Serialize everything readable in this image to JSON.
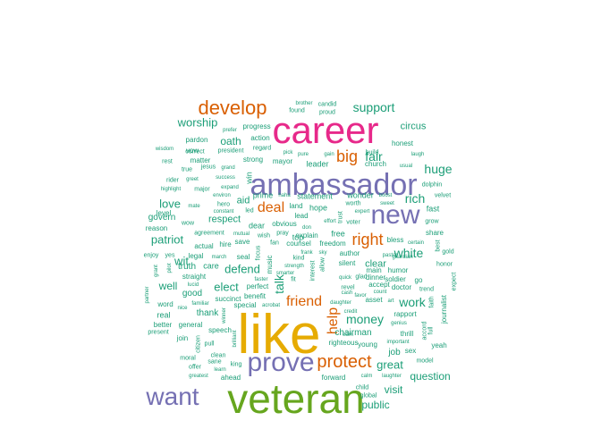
{
  "palette": {
    "teal": "#1b9e77",
    "orange": "#d95f02",
    "purple": "#7570b3",
    "pink": "#e7298a",
    "green": "#66a61e",
    "gold": "#e6ab02"
  },
  "cloud": {
    "words": [
      {
        "text": "like",
        "color": "gold",
        "size": 62
      },
      {
        "text": "veteran",
        "color": "green",
        "size": 46
      },
      {
        "text": "career",
        "color": "pink",
        "size": 42
      },
      {
        "text": "ambassador",
        "color": "purple",
        "size": 34
      },
      {
        "text": "new",
        "color": "purple",
        "size": 30
      },
      {
        "text": "prove",
        "color": "purple",
        "size": 30
      },
      {
        "text": "want",
        "color": "purple",
        "size": 28
      },
      {
        "text": "develop",
        "color": "orange",
        "size": 22
      },
      {
        "text": "protect",
        "color": "orange",
        "size": 20
      },
      {
        "text": "big",
        "color": "orange",
        "size": 18
      },
      {
        "text": "right",
        "color": "orange",
        "size": 18
      },
      {
        "text": "deal",
        "color": "orange",
        "size": 16
      },
      {
        "text": "friend",
        "color": "orange",
        "size": 16
      },
      {
        "text": "help",
        "color": "orange",
        "size": 16
      },
      {
        "text": "support",
        "color": "teal",
        "size": 14
      },
      {
        "text": "fair",
        "color": "teal",
        "size": 14
      },
      {
        "text": "huge",
        "color": "teal",
        "size": 14
      },
      {
        "text": "rich",
        "color": "teal",
        "size": 14
      },
      {
        "text": "white",
        "color": "teal",
        "size": 14
      },
      {
        "text": "work",
        "color": "teal",
        "size": 14
      },
      {
        "text": "money",
        "color": "teal",
        "size": 14
      },
      {
        "text": "great",
        "color": "teal",
        "size": 13
      },
      {
        "text": "patriot",
        "color": "teal",
        "size": 13
      },
      {
        "text": "love",
        "color": "teal",
        "size": 13
      },
      {
        "text": "elect",
        "color": "teal",
        "size": 13
      },
      {
        "text": "defend",
        "color": "teal",
        "size": 13
      },
      {
        "text": "wit",
        "color": "teal",
        "size": 13
      },
      {
        "text": "well",
        "color": "teal",
        "size": 12
      },
      {
        "text": "talk",
        "color": "teal",
        "size": 14
      },
      {
        "text": "worship",
        "color": "teal",
        "size": 13
      },
      {
        "text": "oath",
        "color": "teal",
        "size": 12
      },
      {
        "text": "question",
        "color": "teal",
        "size": 12
      },
      {
        "text": "visit",
        "color": "teal",
        "size": 12
      },
      {
        "text": "public",
        "color": "teal",
        "size": 12
      },
      {
        "text": "circus",
        "color": "teal",
        "size": 11
      },
      {
        "text": "respect",
        "color": "teal",
        "size": 11
      },
      {
        "text": "aid",
        "color": "teal",
        "size": 11
      },
      {
        "text": "clear",
        "color": "teal",
        "size": 11
      },
      {
        "text": "chairman",
        "color": "teal",
        "size": 10
      },
      {
        "text": "job",
        "color": "teal",
        "size": 10
      },
      {
        "text": "good",
        "color": "teal",
        "size": 10
      },
      {
        "text": "truth",
        "color": "teal",
        "size": 10
      },
      {
        "text": "govern",
        "color": "teal",
        "size": 10
      },
      {
        "text": "thank",
        "color": "teal",
        "size": 10
      },
      {
        "text": "real",
        "color": "teal",
        "size": 9
      },
      {
        "text": "care",
        "color": "teal",
        "size": 9
      },
      {
        "text": "leader",
        "color": "teal",
        "size": 9
      },
      {
        "text": "free",
        "color": "teal",
        "size": 9
      },
      {
        "text": "dear",
        "color": "teal",
        "size": 9
      },
      {
        "text": "prime",
        "color": "teal",
        "size": 9
      },
      {
        "text": "statement",
        "color": "teal",
        "size": 9
      },
      {
        "text": "wonder",
        "color": "teal",
        "size": 9
      },
      {
        "text": "top",
        "color": "teal",
        "size": 9
      },
      {
        "text": "hope",
        "color": "teal",
        "size": 9
      },
      {
        "text": "level",
        "color": "teal",
        "size": 8
      },
      {
        "text": "pardon",
        "color": "teal",
        "size": 8
      },
      {
        "text": "action",
        "color": "teal",
        "size": 8
      },
      {
        "text": "progress",
        "color": "teal",
        "size": 8
      },
      {
        "text": "strong",
        "color": "teal",
        "size": 8
      },
      {
        "text": "mayor",
        "color": "teal",
        "size": 8
      },
      {
        "text": "vow",
        "color": "teal",
        "size": 8
      },
      {
        "text": "matter",
        "color": "teal",
        "size": 8
      },
      {
        "text": "jesus",
        "color": "teal",
        "size": 7
      },
      {
        "text": "true",
        "color": "teal",
        "size": 7
      },
      {
        "text": "rest",
        "color": "teal",
        "size": 7
      },
      {
        "text": "major",
        "color": "teal",
        "size": 7
      },
      {
        "text": "rider",
        "color": "teal",
        "size": 7
      },
      {
        "text": "win",
        "color": "teal",
        "size": 9
      },
      {
        "text": "honest",
        "color": "teal",
        "size": 8
      },
      {
        "text": "church",
        "color": "teal",
        "size": 8
      },
      {
        "text": "build",
        "color": "teal",
        "size": 7
      },
      {
        "text": "fast",
        "color": "teal",
        "size": 9
      },
      {
        "text": "velvet",
        "color": "teal",
        "size": 7
      },
      {
        "text": "dolphin",
        "color": "teal",
        "size": 7
      },
      {
        "text": "bless",
        "color": "teal",
        "size": 8
      },
      {
        "text": "share",
        "color": "teal",
        "size": 8
      },
      {
        "text": "author",
        "color": "teal",
        "size": 8
      },
      {
        "text": "silent",
        "color": "teal",
        "size": 8
      },
      {
        "text": "freedom",
        "color": "teal",
        "size": 8
      },
      {
        "text": "counsel",
        "color": "teal",
        "size": 8
      },
      {
        "text": "explain",
        "color": "teal",
        "size": 8
      },
      {
        "text": "lead",
        "color": "teal",
        "size": 8
      },
      {
        "text": "land",
        "color": "teal",
        "size": 8
      },
      {
        "text": "obvious",
        "color": "teal",
        "size": 8
      },
      {
        "text": "seal",
        "color": "teal",
        "size": 8
      },
      {
        "text": "save",
        "color": "teal",
        "size": 8
      },
      {
        "text": "wish",
        "color": "teal",
        "size": 7
      },
      {
        "text": "pray",
        "color": "teal",
        "size": 7
      },
      {
        "text": "fan",
        "color": "teal",
        "size": 7
      },
      {
        "text": "hire",
        "color": "teal",
        "size": 8
      },
      {
        "text": "actual",
        "color": "teal",
        "size": 8
      },
      {
        "text": "agreement",
        "color": "teal",
        "size": 7
      },
      {
        "text": "reason",
        "color": "teal",
        "size": 8
      },
      {
        "text": "wow",
        "color": "teal",
        "size": 7
      },
      {
        "text": "legal",
        "color": "teal",
        "size": 8
      },
      {
        "text": "straight",
        "color": "teal",
        "size": 8
      },
      {
        "text": "succinct",
        "color": "teal",
        "size": 8
      },
      {
        "text": "perfect",
        "color": "teal",
        "size": 8
      },
      {
        "text": "benefit",
        "color": "teal",
        "size": 8
      },
      {
        "text": "special",
        "color": "teal",
        "size": 8
      },
      {
        "text": "speech",
        "color": "teal",
        "size": 8
      },
      {
        "text": "general",
        "color": "teal",
        "size": 8
      },
      {
        "text": "join",
        "color": "teal",
        "size": 8
      },
      {
        "text": "present",
        "color": "teal",
        "size": 7
      },
      {
        "text": "better",
        "color": "teal",
        "size": 8
      },
      {
        "text": "word",
        "color": "teal",
        "size": 8
      },
      {
        "text": "enjoy",
        "color": "teal",
        "size": 7
      },
      {
        "text": "yes",
        "color": "teal",
        "size": 7
      },
      {
        "text": "moral",
        "color": "teal",
        "size": 7
      },
      {
        "text": "offer",
        "color": "teal",
        "size": 7
      },
      {
        "text": "sane",
        "color": "teal",
        "size": 7
      },
      {
        "text": "clean",
        "color": "teal",
        "size": 7
      },
      {
        "text": "king",
        "color": "teal",
        "size": 7
      },
      {
        "text": "ahead",
        "color": "teal",
        "size": 8
      },
      {
        "text": "pull",
        "color": "teal",
        "size": 7
      },
      {
        "text": "forward",
        "color": "teal",
        "size": 8
      },
      {
        "text": "young",
        "color": "teal",
        "size": 8
      },
      {
        "text": "righteous",
        "color": "teal",
        "size": 8
      },
      {
        "text": "earn",
        "color": "teal",
        "size": 6
      },
      {
        "text": "thrill",
        "color": "teal",
        "size": 8
      },
      {
        "text": "rapport",
        "color": "teal",
        "size": 8
      },
      {
        "text": "humor",
        "color": "teal",
        "size": 8
      },
      {
        "text": "doctor",
        "color": "teal",
        "size": 8
      },
      {
        "text": "soldier",
        "color": "teal",
        "size": 8
      },
      {
        "text": "main",
        "color": "teal",
        "size": 8
      },
      {
        "text": "accept",
        "color": "teal",
        "size": 8
      },
      {
        "text": "dinner",
        "color": "teal",
        "size": 8
      },
      {
        "text": "glad",
        "color": "teal",
        "size": 7
      },
      {
        "text": "revel",
        "color": "teal",
        "size": 7
      },
      {
        "text": "asset",
        "color": "teal",
        "size": 8
      },
      {
        "text": "go",
        "color": "teal",
        "size": 8
      },
      {
        "text": "laughter",
        "color": "teal",
        "size": 6
      },
      {
        "text": "calm",
        "color": "teal",
        "size": 6
      },
      {
        "text": "global",
        "color": "teal",
        "size": 7
      },
      {
        "text": "child",
        "color": "teal",
        "size": 7
      },
      {
        "text": "sex",
        "color": "teal",
        "size": 8
      },
      {
        "text": "model",
        "color": "teal",
        "size": 7
      },
      {
        "text": "yeah",
        "color": "teal",
        "size": 8
      },
      {
        "text": "journalist",
        "color": "teal",
        "size": 8
      },
      {
        "text": "expect",
        "color": "teal",
        "size": 7
      },
      {
        "text": "honor",
        "color": "teal",
        "size": 7
      },
      {
        "text": "gold",
        "color": "teal",
        "size": 7
      },
      {
        "text": "trend",
        "color": "teal",
        "size": 7
      },
      {
        "text": "faith",
        "color": "teal",
        "size": 7
      },
      {
        "text": "full",
        "color": "teal",
        "size": 7
      },
      {
        "text": "accord",
        "color": "teal",
        "size": 7
      },
      {
        "text": "best",
        "color": "teal",
        "size": 7
      },
      {
        "text": "grow",
        "color": "teal",
        "size": 7
      },
      {
        "text": "usual",
        "color": "teal",
        "size": 6
      },
      {
        "text": "laugh",
        "color": "teal",
        "size": 6
      },
      {
        "text": "guardian",
        "color": "teal",
        "size": 6
      },
      {
        "text": "pastor",
        "color": "teal",
        "size": 6
      },
      {
        "text": "genius",
        "color": "teal",
        "size": 6
      },
      {
        "text": "important",
        "color": "teal",
        "size": 6
      },
      {
        "text": "count",
        "color": "teal",
        "size": 6
      },
      {
        "text": "worth",
        "color": "teal",
        "size": 7
      },
      {
        "text": "expert",
        "color": "teal",
        "size": 6
      },
      {
        "text": "sweet",
        "color": "teal",
        "size": 6
      },
      {
        "text": "boost",
        "color": "teal",
        "size": 6
      },
      {
        "text": "voter",
        "color": "teal",
        "size": 7
      },
      {
        "text": "effort",
        "color": "teal",
        "size": 6
      },
      {
        "text": "don",
        "color": "teal",
        "size": 6
      },
      {
        "text": "trust",
        "color": "teal",
        "size": 7
      },
      {
        "text": "allow",
        "color": "teal",
        "size": 7
      },
      {
        "text": "interest",
        "color": "teal",
        "size": 7
      },
      {
        "text": "candid",
        "color": "teal",
        "size": 7
      },
      {
        "text": "proud",
        "color": "teal",
        "size": 7
      },
      {
        "text": "brother",
        "color": "teal",
        "size": 6
      },
      {
        "text": "found",
        "color": "teal",
        "size": 7
      },
      {
        "text": "pure",
        "color": "teal",
        "size": 6
      },
      {
        "text": "gain",
        "color": "teal",
        "size": 6
      },
      {
        "text": "pick",
        "color": "teal",
        "size": 6
      },
      {
        "text": "regard",
        "color": "teal",
        "size": 7
      },
      {
        "text": "president",
        "color": "teal",
        "size": 7
      },
      {
        "text": "prefer",
        "color": "teal",
        "size": 6
      },
      {
        "text": "correct",
        "color": "teal",
        "size": 7
      },
      {
        "text": "wisdom",
        "color": "teal",
        "size": 6
      },
      {
        "text": "greet",
        "color": "teal",
        "size": 6
      },
      {
        "text": "grand",
        "color": "teal",
        "size": 6
      },
      {
        "text": "success",
        "color": "teal",
        "size": 6
      },
      {
        "text": "expand",
        "color": "teal",
        "size": 6
      },
      {
        "text": "highlight",
        "color": "teal",
        "size": 6
      },
      {
        "text": "mate",
        "color": "teal",
        "size": 6
      },
      {
        "text": "hero",
        "color": "teal",
        "size": 7
      },
      {
        "text": "constant",
        "color": "teal",
        "size": 6
      },
      {
        "text": "environ",
        "color": "teal",
        "size": 6
      },
      {
        "text": "led",
        "color": "teal",
        "size": 7
      },
      {
        "text": "haha",
        "color": "teal",
        "size": 6
      },
      {
        "text": "mutual",
        "color": "teal",
        "size": 6
      },
      {
        "text": "kind",
        "color": "teal",
        "size": 7
      },
      {
        "text": "frank",
        "color": "teal",
        "size": 6
      },
      {
        "text": "sky",
        "color": "teal",
        "size": 6
      },
      {
        "text": "strength",
        "color": "teal",
        "size": 6
      },
      {
        "text": "smarter",
        "color": "teal",
        "size": 6
      },
      {
        "text": "fit",
        "color": "teal",
        "size": 7
      },
      {
        "text": "faster",
        "color": "teal",
        "size": 6
      },
      {
        "text": "march",
        "color": "teal",
        "size": 6
      },
      {
        "text": "lucid",
        "color": "teal",
        "size": 6
      },
      {
        "text": "grant",
        "color": "teal",
        "size": 6
      },
      {
        "text": "pilot",
        "color": "teal",
        "size": 6
      },
      {
        "text": "partner",
        "color": "teal",
        "size": 6
      },
      {
        "text": "nice",
        "color": "teal",
        "size": 6
      },
      {
        "text": "familiar",
        "color": "teal",
        "size": 6
      },
      {
        "text": "citizen",
        "color": "teal",
        "size": 7
      },
      {
        "text": "winner",
        "color": "teal",
        "size": 6
      },
      {
        "text": "brilliant",
        "color": "teal",
        "size": 6
      },
      {
        "text": "learn",
        "color": "teal",
        "size": 6
      },
      {
        "text": "greatest",
        "color": "teal",
        "size": 6
      },
      {
        "text": "acrobat",
        "color": "teal",
        "size": 6
      },
      {
        "text": "music",
        "color": "teal",
        "size": 8
      },
      {
        "text": "focus",
        "color": "teal",
        "size": 7
      },
      {
        "text": "daughter",
        "color": "teal",
        "size": 6
      },
      {
        "text": "quick",
        "color": "teal",
        "size": 6
      },
      {
        "text": "cash",
        "color": "teal",
        "size": 6
      },
      {
        "text": "favor",
        "color": "teal",
        "size": 6
      },
      {
        "text": "credit",
        "color": "teal",
        "size": 6
      },
      {
        "text": "art",
        "color": "teal",
        "size": 6
      },
      {
        "text": "certain",
        "color": "teal",
        "size": 6
      }
    ]
  }
}
